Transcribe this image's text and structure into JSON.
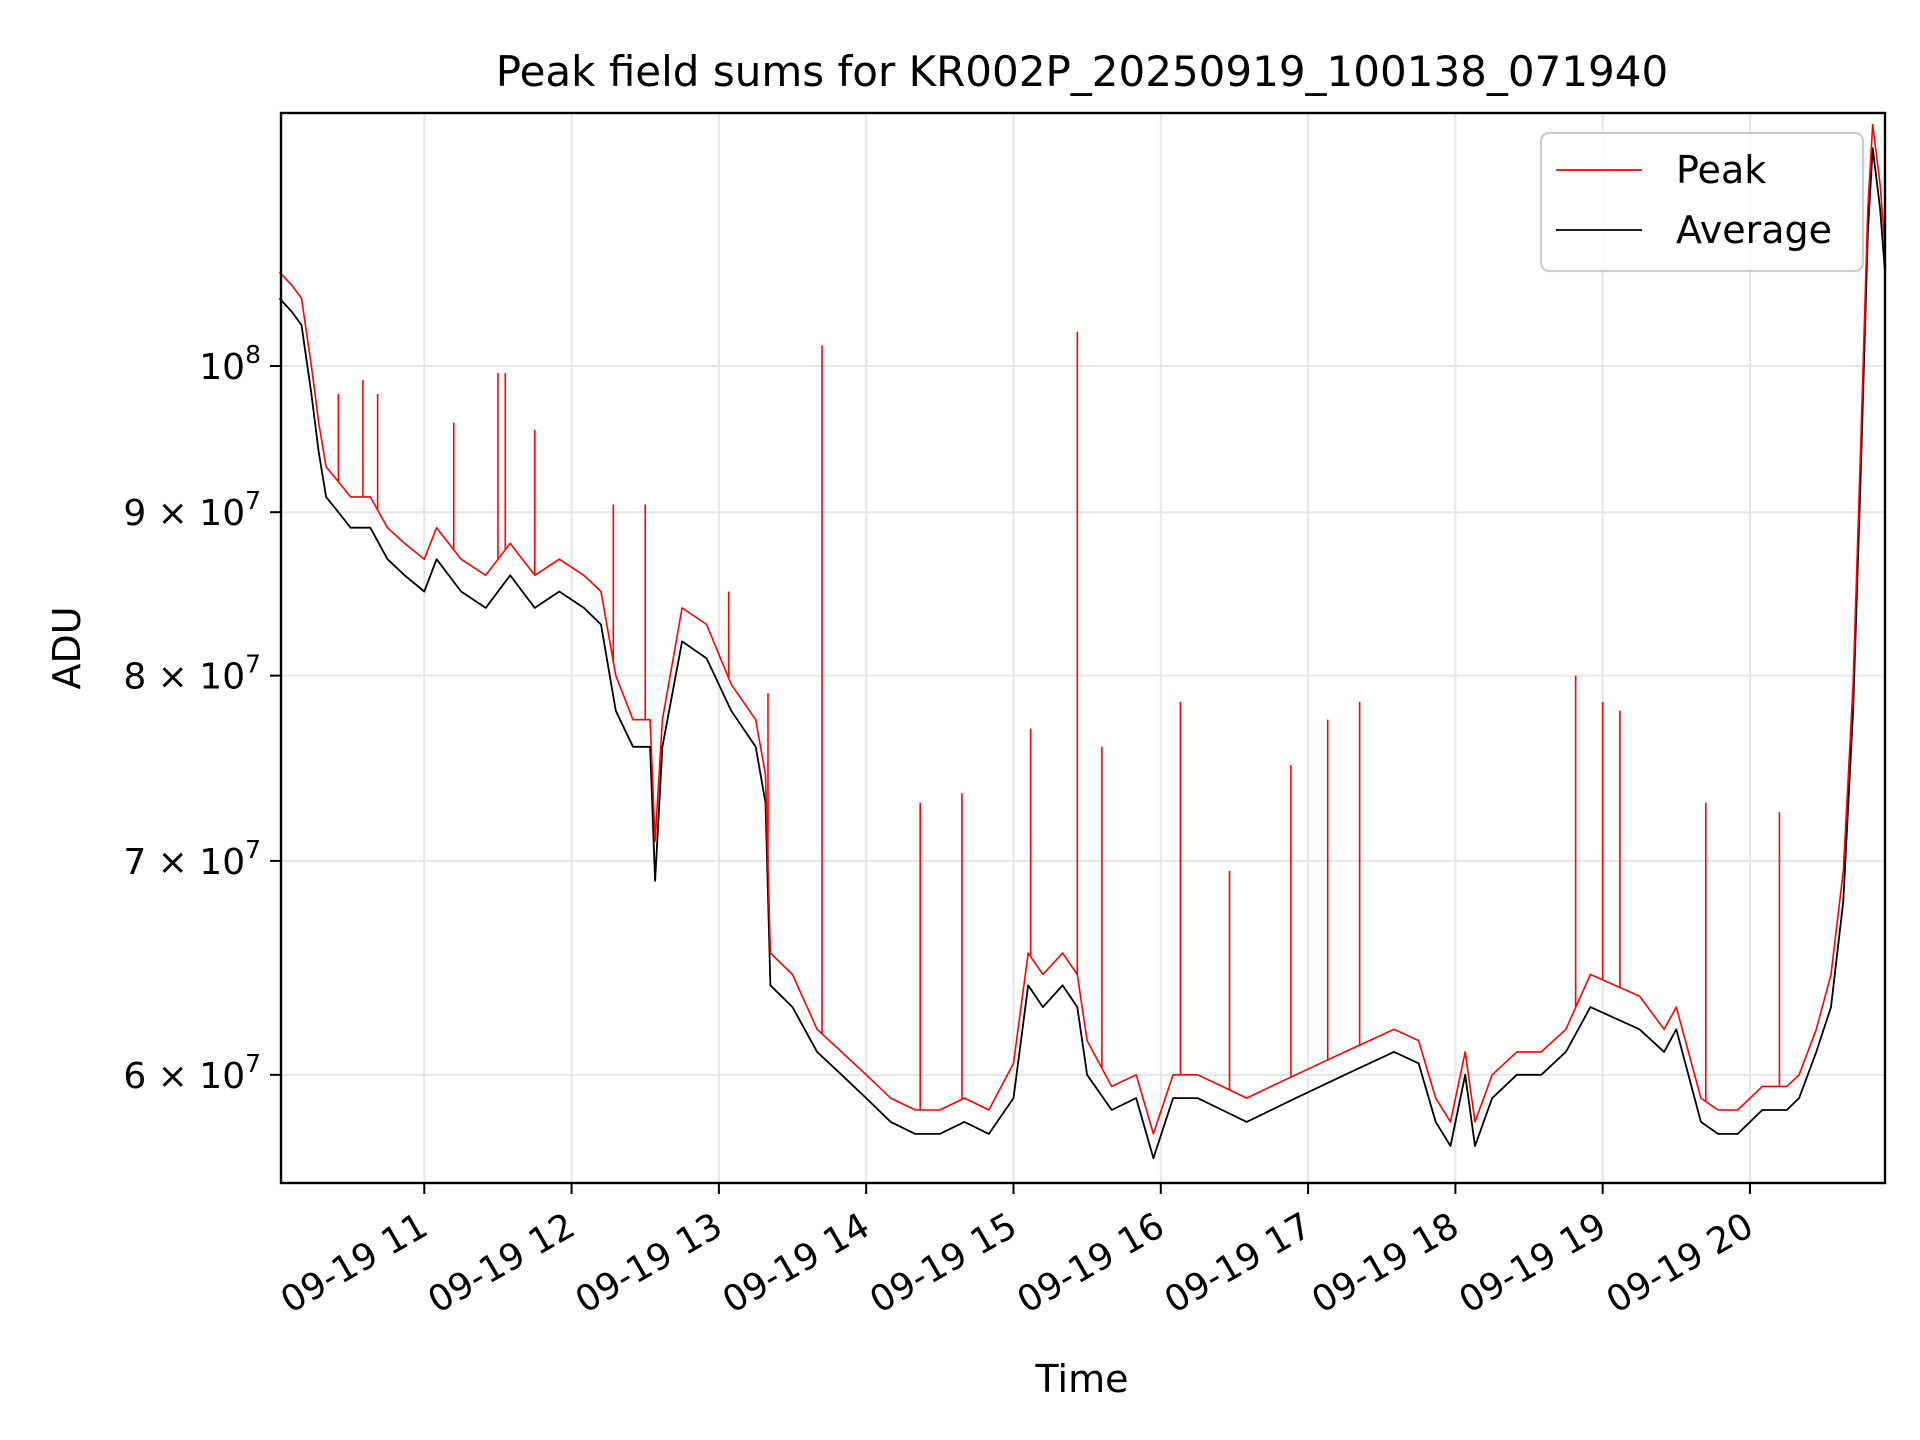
{
  "chart_data": {
    "type": "line",
    "title": "Peak field sums for KR002P_20250919_100138_071940",
    "xlabel": "Time",
    "ylabel": "ADU",
    "x_range": [
      "2025-09-19T10:01:38",
      "2025-09-19T20:55:00"
    ],
    "y_scale": "log",
    "ylim": [
      55500000,
      120000000
    ],
    "grid": true,
    "legend_position": "top-right",
    "x_ticks": [
      "09-19 11",
      "09-19 12",
      "09-19 13",
      "09-19 14",
      "09-19 15",
      "09-19 16",
      "09-19 17",
      "09-19 18",
      "09-19 19",
      "09-19 20"
    ],
    "y_ticks": [
      {
        "value": 60000000,
        "mantissa": "6",
        "exp": "7"
      },
      {
        "value": 70000000,
        "mantissa": "7",
        "exp": "7"
      },
      {
        "value": 80000000,
        "mantissa": "8",
        "exp": "7"
      },
      {
        "value": 90000000,
        "mantissa": "9",
        "exp": "7"
      },
      {
        "value": 100000000,
        "mantissa": "",
        "exp": "8"
      }
    ],
    "series": [
      {
        "name": "Average",
        "color": "#000000",
        "x": [
          "2025-09-19T10:01",
          "2025-09-19T10:06",
          "2025-09-19T10:10",
          "2025-09-19T10:14",
          "2025-09-19T10:17",
          "2025-09-19T10:20",
          "2025-09-19T10:25",
          "2025-09-19T10:30",
          "2025-09-19T10:38",
          "2025-09-19T10:45",
          "2025-09-19T10:52",
          "2025-09-19T11:00",
          "2025-09-19T11:05",
          "2025-09-19T11:15",
          "2025-09-19T11:25",
          "2025-09-19T11:35",
          "2025-09-19T11:45",
          "2025-09-19T11:55",
          "2025-09-19T12:05",
          "2025-09-19T12:12",
          "2025-09-19T12:18",
          "2025-09-19T12:25",
          "2025-09-19T12:32",
          "2025-09-19T12:34",
          "2025-09-19T12:37",
          "2025-09-19T12:45",
          "2025-09-19T12:55",
          "2025-09-19T13:05",
          "2025-09-19T13:15",
          "2025-09-19T13:19",
          "2025-09-19T13:21",
          "2025-09-19T13:30",
          "2025-09-19T13:40",
          "2025-09-19T13:50",
          "2025-09-19T14:00",
          "2025-09-19T14:10",
          "2025-09-19T14:20",
          "2025-09-19T14:30",
          "2025-09-19T14:40",
          "2025-09-19T14:50",
          "2025-09-19T15:00",
          "2025-09-19T15:06",
          "2025-09-19T15:12",
          "2025-09-19T15:20",
          "2025-09-19T15:26",
          "2025-09-19T15:30",
          "2025-09-19T15:40",
          "2025-09-19T15:50",
          "2025-09-19T15:57",
          "2025-09-19T16:05",
          "2025-09-19T16:15",
          "2025-09-19T16:25",
          "2025-09-19T16:35",
          "2025-09-19T16:45",
          "2025-09-19T16:55",
          "2025-09-19T17:05",
          "2025-09-19T17:15",
          "2025-09-19T17:25",
          "2025-09-19T17:35",
          "2025-09-19T17:45",
          "2025-09-19T17:52",
          "2025-09-19T17:58",
          "2025-09-19T18:04",
          "2025-09-19T18:08",
          "2025-09-19T18:15",
          "2025-09-19T18:25",
          "2025-09-19T18:35",
          "2025-09-19T18:45",
          "2025-09-19T18:55",
          "2025-09-19T19:05",
          "2025-09-19T19:15",
          "2025-09-19T19:25",
          "2025-09-19T19:30",
          "2025-09-19T19:40",
          "2025-09-19T19:47",
          "2025-09-19T19:55",
          "2025-09-19T20:05",
          "2025-09-19T20:15",
          "2025-09-19T20:20",
          "2025-09-19T20:27",
          "2025-09-19T20:33",
          "2025-09-19T20:38",
          "2025-09-19T20:42",
          "2025-09-19T20:45",
          "2025-09-19T20:48",
          "2025-09-19T20:50",
          "2025-09-19T20:53",
          "2025-09-19T20:55"
        ],
        "y": [
          105000000,
          104000000,
          103000000,
          98000000,
          94000000,
          91000000,
          90000000,
          89000000,
          89000000,
          87000000,
          86000000,
          85000000,
          87000000,
          85000000,
          84000000,
          86000000,
          84000000,
          85000000,
          84000000,
          83000000,
          78000000,
          76000000,
          76000000,
          69000000,
          76000000,
          82000000,
          81000000,
          78000000,
          76000000,
          73000000,
          64000000,
          63000000,
          61000000,
          60000000,
          59000000,
          58000000,
          57500000,
          57500000,
          58000000,
          57500000,
          59000000,
          64000000,
          63000000,
          64000000,
          63000000,
          60000000,
          58500000,
          59000000,
          56500000,
          59000000,
          59000000,
          58500000,
          58000000,
          58500000,
          59000000,
          59500000,
          60000000,
          60500000,
          61000000,
          60500000,
          58000000,
          57000000,
          60000000,
          57000000,
          59000000,
          60000000,
          60000000,
          61000000,
          63000000,
          62500000,
          62000000,
          61000000,
          62000000,
          58000000,
          57500000,
          57500000,
          58500000,
          58500000,
          59000000,
          61000000,
          63000000,
          68000000,
          78000000,
          92000000,
          110000000,
          117000000,
          112000000,
          107000000
        ]
      },
      {
        "name": "Peak",
        "color": "#ff0000",
        "x": [
          "2025-09-19T10:01",
          "2025-09-19T10:06",
          "2025-09-19T10:10",
          "2025-09-19T10:14",
          "2025-09-19T10:17",
          "2025-09-19T10:20",
          "2025-09-19T10:25",
          "2025-09-19T10:30",
          "2025-09-19T10:38",
          "2025-09-19T10:45",
          "2025-09-19T10:52",
          "2025-09-19T11:00",
          "2025-09-19T11:05",
          "2025-09-19T11:15",
          "2025-09-19T11:25",
          "2025-09-19T11:35",
          "2025-09-19T11:45",
          "2025-09-19T11:55",
          "2025-09-19T12:05",
          "2025-09-19T12:12",
          "2025-09-19T12:18",
          "2025-09-19T12:25",
          "2025-09-19T12:32",
          "2025-09-19T12:34",
          "2025-09-19T12:37",
          "2025-09-19T12:45",
          "2025-09-19T12:55",
          "2025-09-19T13:05",
          "2025-09-19T13:15",
          "2025-09-19T13:19",
          "2025-09-19T13:21",
          "2025-09-19T13:30",
          "2025-09-19T13:40",
          "2025-09-19T13:50",
          "2025-09-19T14:00",
          "2025-09-19T14:10",
          "2025-09-19T14:20",
          "2025-09-19T14:30",
          "2025-09-19T14:40",
          "2025-09-19T14:50",
          "2025-09-19T15:00",
          "2025-09-19T15:06",
          "2025-09-19T15:12",
          "2025-09-19T15:20",
          "2025-09-19T15:26",
          "2025-09-19T15:30",
          "2025-09-19T15:40",
          "2025-09-19T15:50",
          "2025-09-19T15:57",
          "2025-09-19T16:05",
          "2025-09-19T16:15",
          "2025-09-19T16:25",
          "2025-09-19T16:35",
          "2025-09-19T16:45",
          "2025-09-19T16:55",
          "2025-09-19T17:05",
          "2025-09-19T17:15",
          "2025-09-19T17:25",
          "2025-09-19T17:35",
          "2025-09-19T17:45",
          "2025-09-19T17:52",
          "2025-09-19T17:58",
          "2025-09-19T18:04",
          "2025-09-19T18:08",
          "2025-09-19T18:15",
          "2025-09-19T18:25",
          "2025-09-19T18:35",
          "2025-09-19T18:45",
          "2025-09-19T18:55",
          "2025-09-19T19:05",
          "2025-09-19T19:15",
          "2025-09-19T19:25",
          "2025-09-19T19:30",
          "2025-09-19T19:40",
          "2025-09-19T19:47",
          "2025-09-19T19:55",
          "2025-09-19T20:05",
          "2025-09-19T20:15",
          "2025-09-19T20:20",
          "2025-09-19T20:27",
          "2025-09-19T20:33",
          "2025-09-19T20:38",
          "2025-09-19T20:42",
          "2025-09-19T20:45",
          "2025-09-19T20:48",
          "2025-09-19T20:50",
          "2025-09-19T20:53",
          "2025-09-19T20:55"
        ],
        "y": [
          107000000,
          106000000,
          105000000,
          100000000,
          96000000,
          93000000,
          92000000,
          91000000,
          91000000,
          89000000,
          88000000,
          87000000,
          89000000,
          87000000,
          86000000,
          88000000,
          86000000,
          87000000,
          86000000,
          85000000,
          80000000,
          77500000,
          77500000,
          71000000,
          77500000,
          84000000,
          83000000,
          79500000,
          77500000,
          74500000,
          65500000,
          64500000,
          62000000,
          61000000,
          60000000,
          59000000,
          58500000,
          58500000,
          59000000,
          58500000,
          60500000,
          65500000,
          64500000,
          65500000,
          64500000,
          61500000,
          59500000,
          60000000,
          57500000,
          60000000,
          60000000,
          59500000,
          59000000,
          59500000,
          60000000,
          60500000,
          61000000,
          61500000,
          62000000,
          61500000,
          59000000,
          58000000,
          61000000,
          58000000,
          60000000,
          61000000,
          61000000,
          62000000,
          64500000,
          64000000,
          63500000,
          62000000,
          63000000,
          59000000,
          58500000,
          58500000,
          59500000,
          59500000,
          60000000,
          62000000,
          64500000,
          69500000,
          79500000,
          94000000,
          112000000,
          119000000,
          114000000,
          109000000
        ]
      }
    ],
    "spikes": [
      {
        "x": "2025-09-19T10:25",
        "y": 98000000
      },
      {
        "x": "2025-09-19T10:35",
        "y": 99000000
      },
      {
        "x": "2025-09-19T10:41",
        "y": 98000000
      },
      {
        "x": "2025-09-19T11:12",
        "y": 96000000
      },
      {
        "x": "2025-09-19T11:30",
        "y": 99500000
      },
      {
        "x": "2025-09-19T11:33",
        "y": 99500000
      },
      {
        "x": "2025-09-19T11:45",
        "y": 95500000
      },
      {
        "x": "2025-09-19T12:17",
        "y": 90500000
      },
      {
        "x": "2025-09-19T12:30",
        "y": 90500000
      },
      {
        "x": "2025-09-19T13:04",
        "y": 85000000
      },
      {
        "x": "2025-09-19T13:20",
        "y": 79000000
      },
      {
        "x": "2025-09-19T13:42",
        "y": 101500000
      },
      {
        "x": "2025-09-19T14:22",
        "y": 73000000
      },
      {
        "x": "2025-09-19T14:39",
        "y": 73500000
      },
      {
        "x": "2025-09-19T15:07",
        "y": 77000000
      },
      {
        "x": "2025-09-19T15:26",
        "y": 102500000
      },
      {
        "x": "2025-09-19T15:36",
        "y": 76000000
      },
      {
        "x": "2025-09-19T16:08",
        "y": 78500000
      },
      {
        "x": "2025-09-19T16:28",
        "y": 69500000
      },
      {
        "x": "2025-09-19T16:53",
        "y": 75000000
      },
      {
        "x": "2025-09-19T17:08",
        "y": 77500000
      },
      {
        "x": "2025-09-19T17:21",
        "y": 78500000
      },
      {
        "x": "2025-09-19T18:49",
        "y": 80000000
      },
      {
        "x": "2025-09-19T19:00",
        "y": 78500000
      },
      {
        "x": "2025-09-19T19:07",
        "y": 78000000
      },
      {
        "x": "2025-09-19T19:42",
        "y": 73000000
      },
      {
        "x": "2025-09-19T20:12",
        "y": 72500000
      }
    ]
  }
}
